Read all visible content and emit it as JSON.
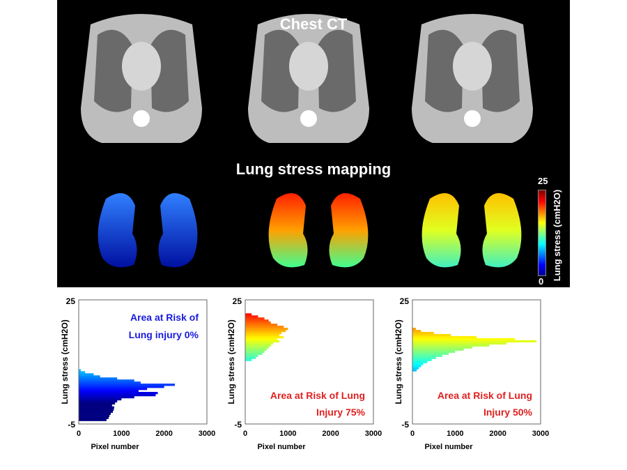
{
  "panel": {
    "title_ct": "Chest CT",
    "title_map": "Lung stress mapping",
    "colorbar": {
      "max": "25",
      "min": "0",
      "label": "Lung stress (cmH2O)"
    }
  },
  "colors": {
    "annot_blue": "#1a1adf",
    "annot_red": "#e02020"
  },
  "chart_data": [
    {
      "type": "bar",
      "orientation": "horizontal",
      "xlabel": "Pixel number",
      "ylabel": "Lung stress (cmH2O)",
      "xlim": [
        0,
        3000
      ],
      "ylim": [
        -5,
        25
      ],
      "xticks": [
        "0",
        "1000",
        "2000",
        "3000"
      ],
      "yticks": [
        "-5",
        "25"
      ],
      "annotation": [
        "Area at  Risk of",
        "Lung injury 0%"
      ],
      "annotation_color": "blue",
      "bin_width": 0.5,
      "stress": [
        -4,
        -3.5,
        -3,
        -2.5,
        -2,
        -1.5,
        -1,
        -0.5,
        0,
        0.5,
        1,
        1.5,
        2,
        2.5,
        3,
        3.5,
        4,
        4.5,
        5,
        5.5,
        6,
        6.5,
        7,
        7.5,
        8
      ],
      "pixels": [
        650,
        700,
        720,
        750,
        800,
        820,
        830,
        780,
        850,
        900,
        1000,
        1300,
        1800,
        1850,
        1400,
        1600,
        2000,
        2250,
        1450,
        1300,
        900,
        500,
        350,
        150,
        50
      ]
    },
    {
      "type": "bar",
      "orientation": "horizontal",
      "xlabel": "Pixel number",
      "ylabel": "Lung stress (cmH2O)",
      "xlim": [
        0,
        3000
      ],
      "ylim": [
        -5,
        25
      ],
      "xticks": [
        "0",
        "1000",
        "2000",
        "3000"
      ],
      "yticks": [
        "-5",
        "25"
      ],
      "annotation": [
        "Area at Risk of Lung",
        "Injury 75%"
      ],
      "annotation_color": "red",
      "bin_width": 0.5,
      "stress": [
        10.5,
        11,
        11.5,
        12,
        12.5,
        13,
        13.5,
        14,
        14.5,
        15,
        15.5,
        16,
        16.5,
        17,
        17.5,
        18,
        18.5,
        19,
        19.5,
        20,
        20.5,
        21,
        21.5
      ],
      "pixels": [
        150,
        250,
        300,
        400,
        450,
        500,
        550,
        600,
        650,
        800,
        750,
        900,
        800,
        850,
        950,
        1000,
        900,
        750,
        600,
        550,
        450,
        300,
        150
      ]
    },
    {
      "type": "bar",
      "orientation": "horizontal",
      "xlabel": "Pixel number",
      "ylabel": "Lung stress (cmH2O)",
      "xlim": [
        0,
        3000
      ],
      "ylim": [
        -5,
        25
      ],
      "xticks": [
        "0",
        "1000",
        "2000",
        "3000"
      ],
      "yticks": [
        "-5",
        "25"
      ],
      "annotation": [
        "Area at Risk of Lung",
        "Injury 50%"
      ],
      "annotation_color": "red",
      "bin_width": 0.5,
      "stress": [
        8,
        8.5,
        9,
        9.5,
        10,
        10.5,
        11,
        11.5,
        12,
        12.5,
        13,
        13.5,
        14,
        14.5,
        15,
        15.5,
        16,
        16.5,
        17,
        17.5,
        18
      ],
      "pixels": [
        100,
        150,
        200,
        250,
        350,
        450,
        550,
        700,
        850,
        1000,
        1200,
        1400,
        1800,
        2200,
        2900,
        2400,
        1500,
        900,
        500,
        200,
        80
      ]
    }
  ]
}
